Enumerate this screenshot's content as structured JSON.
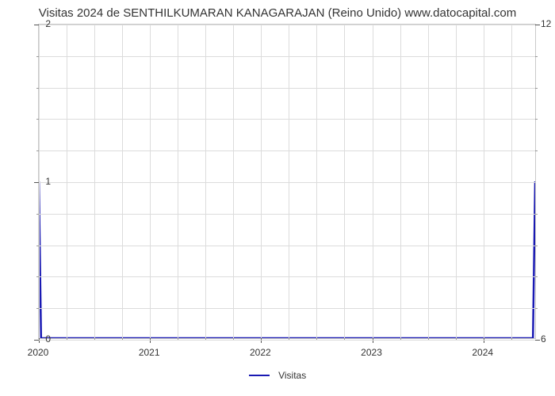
{
  "chart": {
    "type": "line",
    "title": "Visitas 2024 de SENTHILKUMARAN KANAGARAJAN (Reino Unido) www.datocapital.com",
    "title_fontsize": 15,
    "title_color": "#333333",
    "background_color": "#ffffff",
    "plot_border_color": "#c9c9c9",
    "grid_color": "#dcdcdc",
    "series": {
      "name": "Visitas",
      "color": "#1919b3",
      "line_width": 2.5,
      "x": [
        2020,
        2020.02,
        2024.46,
        2024.48
      ],
      "y": [
        1,
        0,
        0,
        1
      ]
    },
    "x_axis": {
      "min": 2020,
      "max": 2024.48,
      "major_ticks": [
        2020,
        2021,
        2022,
        2023,
        2024
      ],
      "minor_step": 0.25,
      "labels": [
        "2020",
        "2021",
        "2022",
        "2023",
        "2024"
      ]
    },
    "y_axis_left": {
      "min": 0,
      "max": 2,
      "major_ticks": [
        0,
        1,
        2
      ],
      "minor_count": 4,
      "labels": [
        "0",
        "1",
        "2"
      ]
    },
    "y_axis_right": {
      "min": 6,
      "max": 12,
      "major_ticks": [
        6,
        12
      ],
      "labels": [
        "6",
        "12"
      ]
    },
    "legend": {
      "label": "Visitas",
      "swatch_color": "#1919b3"
    },
    "tick_label_fontsize": 12,
    "tick_label_color": "#333333"
  }
}
